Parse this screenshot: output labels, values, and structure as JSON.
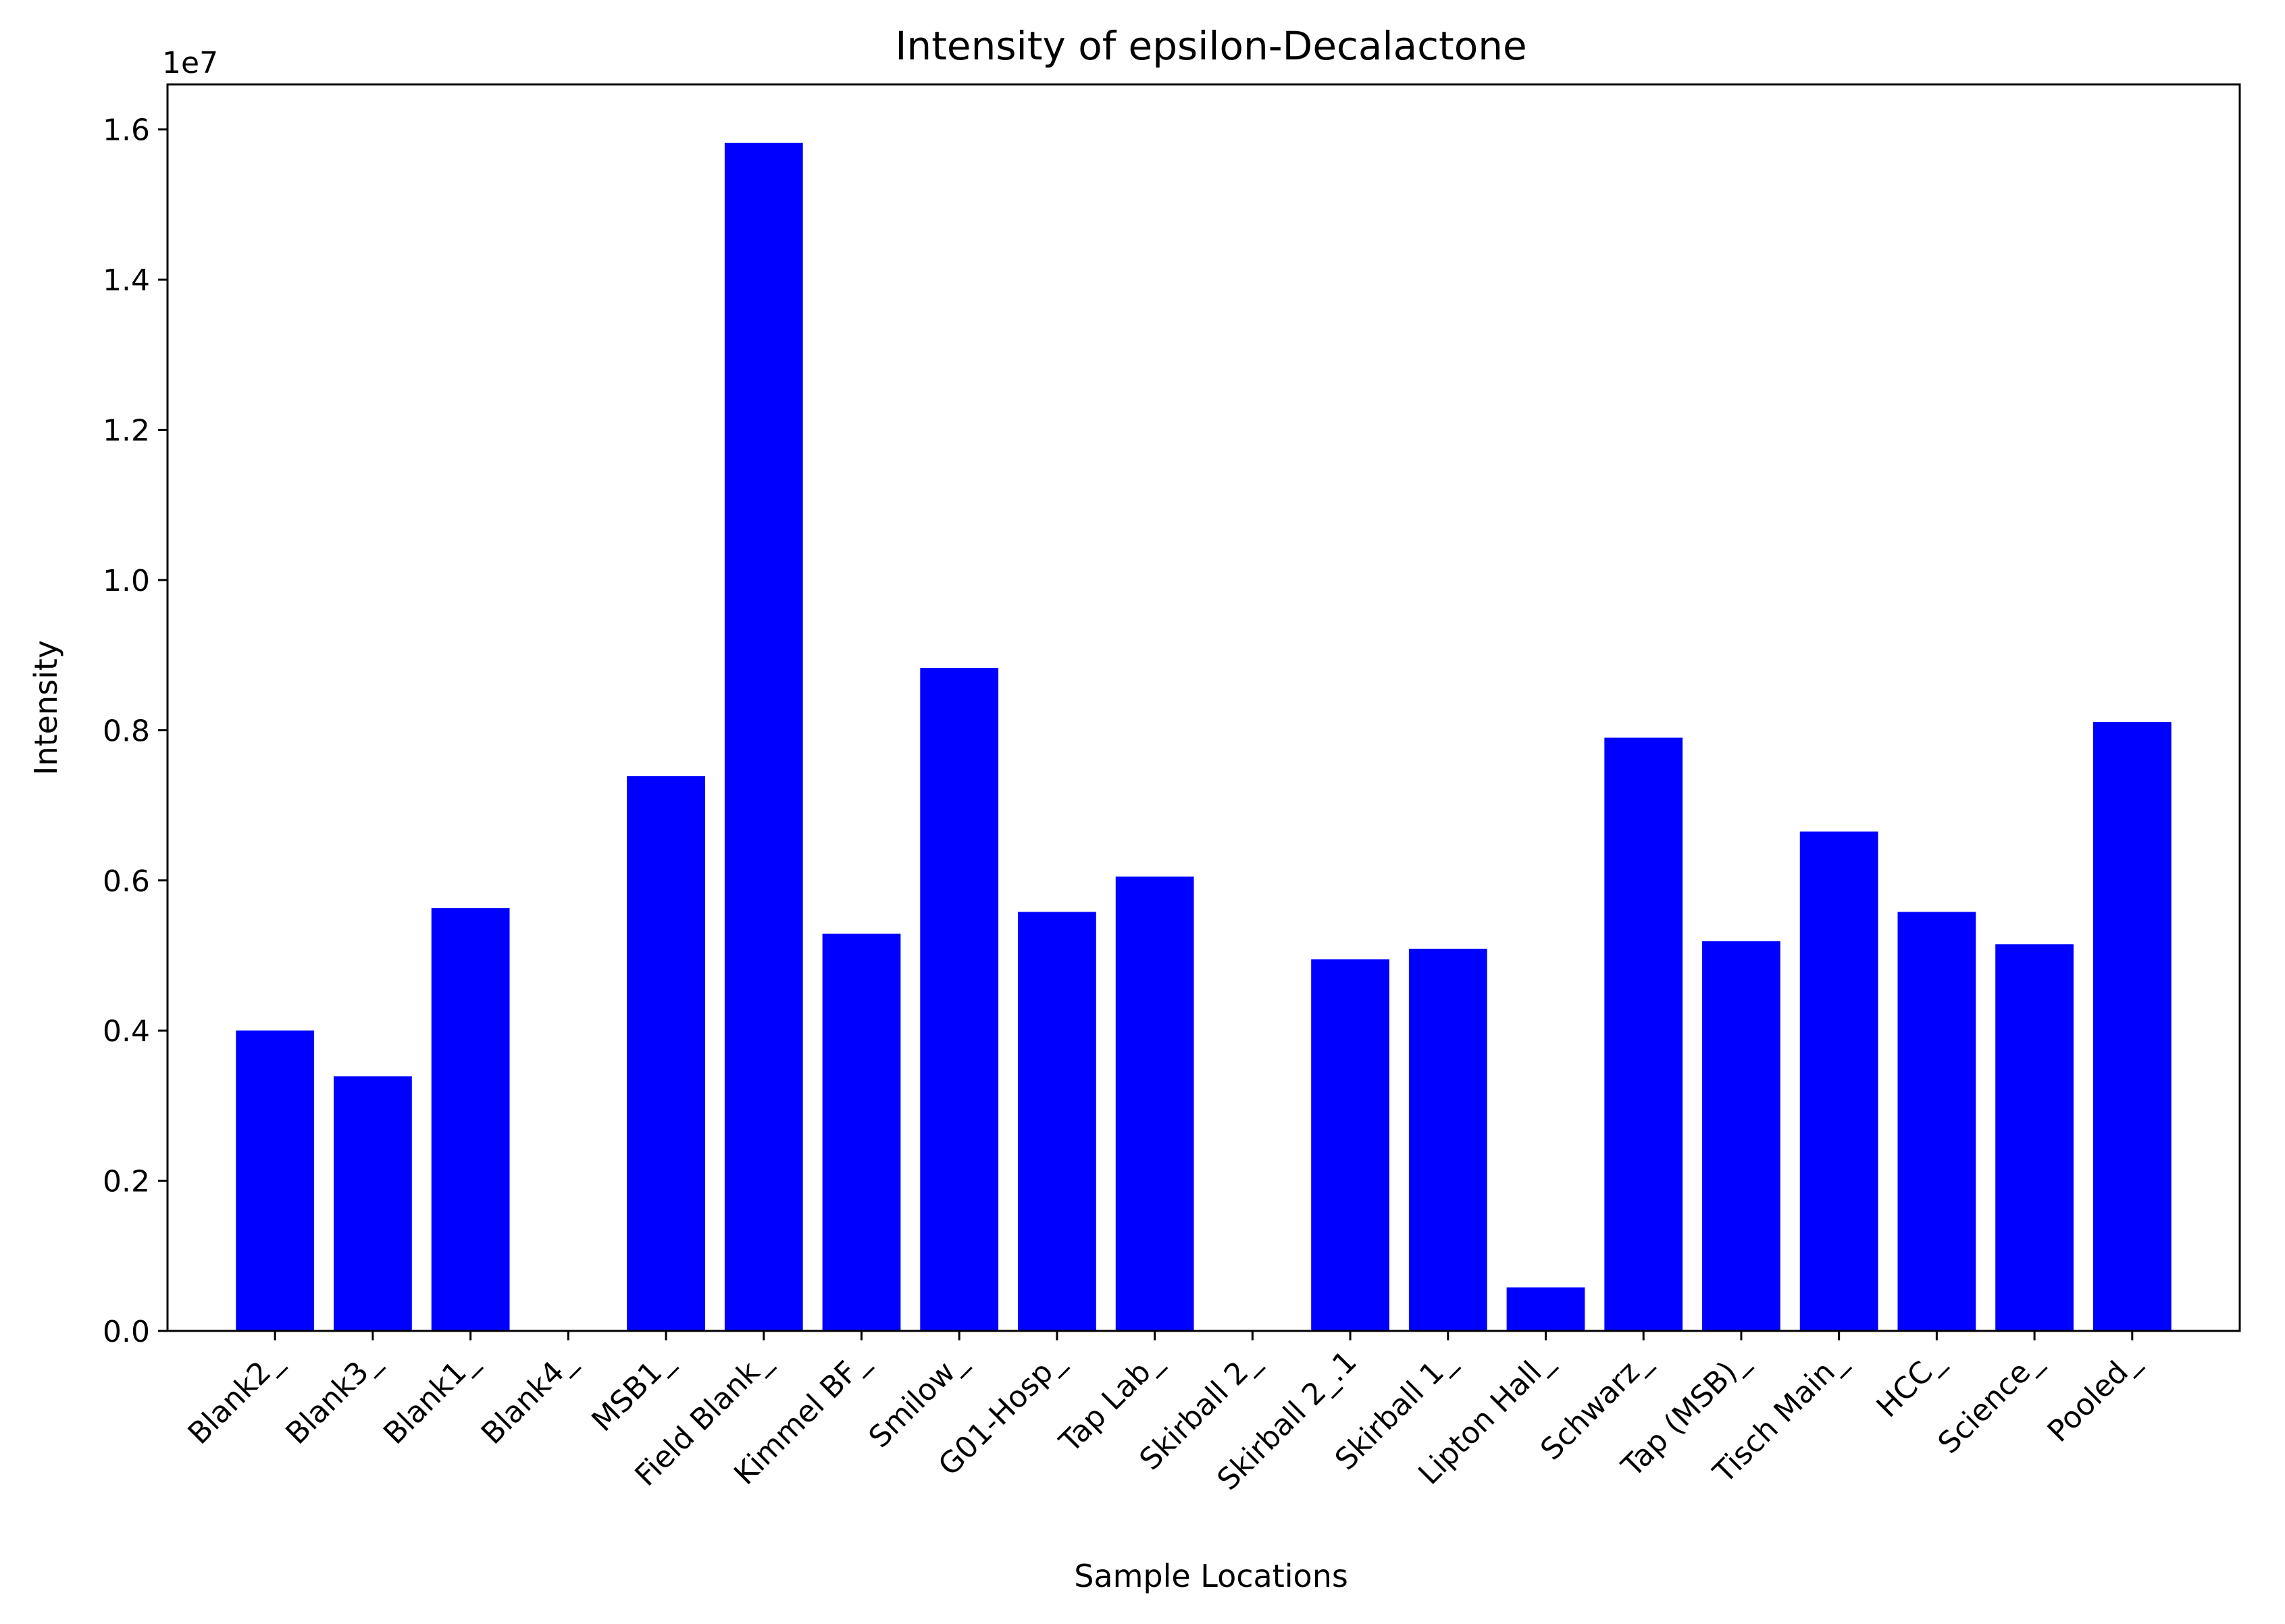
{
  "chart_data": {
    "type": "bar",
    "title": "Intensity of epsilon-Decalactone",
    "xlabel": "Sample Locations",
    "ylabel": "Intensity",
    "y_offset_label": "1e7",
    "bar_color": "#0000ff",
    "ylim": [
      0,
      16600000
    ],
    "yticks": [
      0,
      2000000,
      4000000,
      6000000,
      8000000,
      10000000,
      12000000,
      14000000,
      16000000
    ],
    "ytick_labels": [
      "0.0",
      "0.2",
      "0.4",
      "0.6",
      "0.8",
      "1.0",
      "1.2",
      "1.4",
      "1.6"
    ],
    "categories": [
      "Blank2_",
      "Blank3_",
      "Blank1_",
      "Blank4_",
      "MSB1_",
      "Field Blank_",
      "Kimmel BF_",
      "Smilow_",
      "G01-Hosp_",
      "Tap Lab_",
      "Skirball 2_",
      "Skirball 2_.1",
      "Skirball 1_",
      "Lipton Hall_",
      "Schwarz_",
      "Tap (MSB)_",
      "Tisch Main_",
      "HCC_",
      "Science_",
      "Pooled_"
    ],
    "values": [
      4000000,
      3390000,
      5630000,
      0,
      7390000,
      15820000,
      5290000,
      8830000,
      5580000,
      6050000,
      0,
      4950000,
      5090000,
      580000,
      7900000,
      5190000,
      6650000,
      5580000,
      5150000,
      8110000
    ],
    "grid": false,
    "legend": "none"
  }
}
